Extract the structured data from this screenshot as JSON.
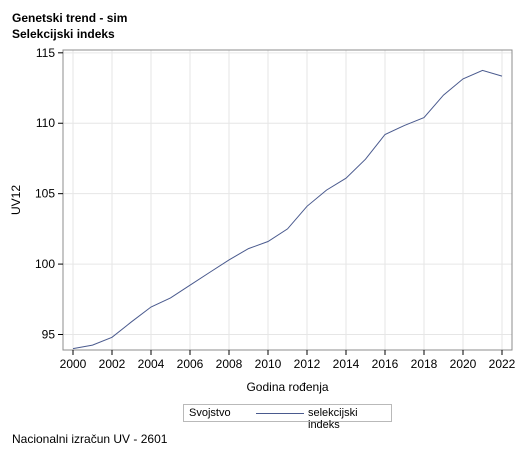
{
  "title": "Genetski trend - sim",
  "subtitle": "Selekcijski indeks",
  "footnote": "Nacionalni izračun UV - 2601",
  "legend": {
    "title": "Svojstvo",
    "series_label": "selekcijski indeks"
  },
  "colors": {
    "line": "#4a5a8e",
    "grid": "#e6e6e6",
    "frame": "#8c8c8c"
  },
  "chart_data": {
    "type": "line",
    "xlabel": "Godina rođenja",
    "ylabel": "UV12",
    "xlim": [
      2000,
      2022
    ],
    "ylim": [
      93.9,
      115.2
    ],
    "xticks": [
      2000,
      2002,
      2004,
      2006,
      2008,
      2010,
      2012,
      2014,
      2016,
      2018,
      2020,
      2022
    ],
    "yticks": [
      95,
      100,
      105,
      110,
      115
    ],
    "grid": true,
    "legend_position": "bottom",
    "series": [
      {
        "name": "selekcijski indeks",
        "x": [
          2000,
          2001,
          2002,
          2003,
          2004,
          2005,
          2006,
          2007,
          2008,
          2009,
          2010,
          2011,
          2012,
          2013,
          2014,
          2015,
          2016,
          2017,
          2018,
          2019,
          2020,
          2021,
          2022
        ],
        "values": [
          94.0,
          94.25,
          94.8,
          95.9,
          96.95,
          97.6,
          98.5,
          99.4,
          100.3,
          101.1,
          101.6,
          102.5,
          104.1,
          105.25,
          106.1,
          107.45,
          109.2,
          109.85,
          110.4,
          112.0,
          113.15,
          113.75,
          113.35
        ]
      }
    ]
  }
}
